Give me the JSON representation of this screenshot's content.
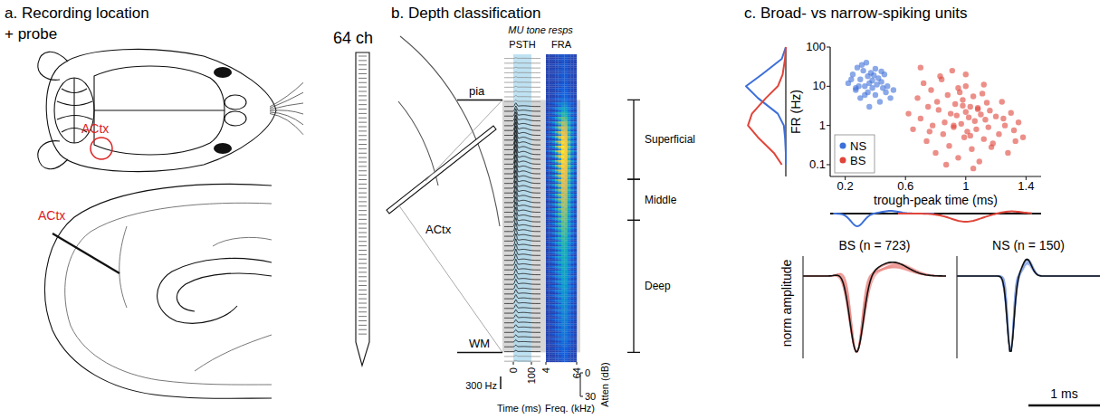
{
  "panel_a": {
    "title": "a. Recording location + probe",
    "region_label": "ACtx",
    "probe_label": "64 ch"
  },
  "panel_b": {
    "title": "b. Depth classification",
    "subtitle": "MU tone resps",
    "psth_label": "PSTH",
    "fra_label": "FRA",
    "region_label": "ACtx",
    "channels": 64,
    "boundaries": [
      {
        "label": "pia",
        "channel": 9.5
      },
      {
        "label": "WM",
        "channel": 62
      }
    ],
    "layers": [
      {
        "label": "Superficial",
        "from": 9.5,
        "to": 26
      },
      {
        "label": "Middle",
        "from": 26,
        "to": 34.5
      },
      {
        "label": "Deep",
        "from": 34.5,
        "to": 62
      }
    ],
    "psth": {
      "xlim": [
        -50,
        150
      ],
      "xticks": [
        0,
        100
      ],
      "xlabel": "Time (ms)",
      "stimulus": [
        0,
        100
      ],
      "scale_bar": {
        "value": 300,
        "label": "300 Hz"
      }
    },
    "fra": {
      "xlim": [
        4,
        64
      ],
      "xticks": [
        4,
        64
      ],
      "xlabel": "Freq. (kHz)",
      "ylabel": "Atten (dB)",
      "ylim": [
        0,
        30
      ],
      "yticks": [
        0,
        30
      ]
    },
    "mu_response_hz": [
      15,
      15,
      18,
      16,
      20,
      18,
      22,
      25,
      30,
      40,
      80,
      120,
      160,
      200,
      240,
      270,
      300,
      320,
      330,
      340,
      340,
      335,
      330,
      320,
      310,
      300,
      290,
      280,
      270,
      260,
      250,
      240,
      230,
      220,
      210,
      200,
      190,
      180,
      170,
      160,
      150,
      145,
      140,
      135,
      130,
      125,
      120,
      115,
      110,
      100,
      95,
      90,
      85,
      80,
      75,
      70,
      65,
      60,
      55,
      50,
      40,
      30,
      25,
      20
    ]
  },
  "chart_data": {
    "type": "scatter",
    "title": "c. Broad- vs narrow-spiking units",
    "x_label": "trough-peak time (ms)",
    "y_label": "FR (Hz)",
    "xlim": [
      0.1,
      1.5
    ],
    "ylim": [
      0.05,
      100
    ],
    "xticks": [
      0.2,
      0.6,
      1,
      1.4
    ],
    "yticks": [
      0.1,
      1,
      10,
      100
    ],
    "log": "y",
    "legend": "lower left",
    "series": [
      {
        "name": "NS",
        "color": "#3d6fd9",
        "marker": "circle",
        "x": [
          0.22,
          0.25,
          0.27,
          0.28,
          0.3,
          0.3,
          0.32,
          0.33,
          0.34,
          0.35,
          0.35,
          0.36,
          0.37,
          0.38,
          0.38,
          0.4,
          0.4,
          0.41,
          0.42,
          0.43,
          0.44,
          0.45,
          0.46,
          0.47,
          0.48,
          0.5,
          0.52,
          0.24,
          0.29,
          0.31,
          0.36,
          0.39,
          0.44,
          0.33,
          0.27
        ],
        "values": [
          12,
          20,
          8,
          30,
          15,
          5,
          25,
          10,
          40,
          18,
          7,
          12,
          22,
          9,
          14,
          6,
          28,
          11,
          16,
          4,
          13,
          9,
          20,
          7,
          10,
          5,
          8,
          15,
          10,
          35,
          3,
          19,
          24,
          6,
          9
        ]
      },
      {
        "name": "BS",
        "color": "#e0453a",
        "marker": "circle",
        "x": [
          0.62,
          0.65,
          0.68,
          0.7,
          0.72,
          0.74,
          0.75,
          0.77,
          0.78,
          0.8,
          0.81,
          0.82,
          0.84,
          0.85,
          0.86,
          0.88,
          0.89,
          0.9,
          0.91,
          0.92,
          0.93,
          0.94,
          0.95,
          0.96,
          0.97,
          0.98,
          0.99,
          1.0,
          1.0,
          1.01,
          1.02,
          1.03,
          1.04,
          1.05,
          1.06,
          1.07,
          1.08,
          1.09,
          1.1,
          1.11,
          1.12,
          1.13,
          1.14,
          1.15,
          1.16,
          1.18,
          1.2,
          1.22,
          1.24,
          1.26,
          1.28,
          1.3,
          1.32,
          1.35,
          1.38,
          0.7,
          0.83,
          0.87,
          0.95,
          1.0,
          1.05,
          1.12,
          1.17,
          0.92,
          0.98,
          1.03,
          1.08,
          0.76,
          1.25,
          1.33
        ],
        "values": [
          2,
          0.8,
          5,
          1.5,
          12,
          0.4,
          3,
          8,
          1,
          0.2,
          4,
          2.5,
          15,
          0.6,
          1.2,
          6,
          0.3,
          2,
          25,
          0.9,
          3.5,
          1.8,
          0.15,
          7,
          1.1,
          4.5,
          0.5,
          2.2,
          10,
          0.7,
          1.6,
          3,
          0.25,
          5.5,
          1.3,
          0.8,
          2.8,
          0.12,
          1.9,
          6.5,
          0.45,
          1.4,
          3.8,
          0.9,
          2.4,
          0.35,
          1.7,
          0.6,
          4,
          1,
          0.2,
          2.1,
          0.75,
          1.2,
          0.5,
          30,
          18,
          0.1,
          9,
          20,
          0.08,
          11,
          0.28,
          1,
          3.2,
          0.55,
          2.6,
          0.7,
          1.5,
          0.4
        ]
      }
    ],
    "marginal_density": {
      "y": [
        0.1,
        0.2,
        0.5,
        1,
        2,
        5,
        10,
        20,
        50,
        100
      ],
      "NS": [
        0,
        0,
        0.02,
        0.05,
        0.2,
        0.7,
        1,
        0.6,
        0.1,
        0
      ],
      "BS": [
        0.1,
        0.3,
        0.7,
        0.95,
        0.85,
        0.5,
        0.2,
        0.08,
        0.02,
        0
      ]
    }
  },
  "waveforms": {
    "y_label": "norm amplitude",
    "panels": [
      {
        "name": "BS",
        "label": "BS (n = 723)"
      },
      {
        "name": "NS",
        "label": "NS (n = 150)"
      }
    ],
    "scale_bar": {
      "value": 1,
      "label": "1 ms"
    }
  }
}
